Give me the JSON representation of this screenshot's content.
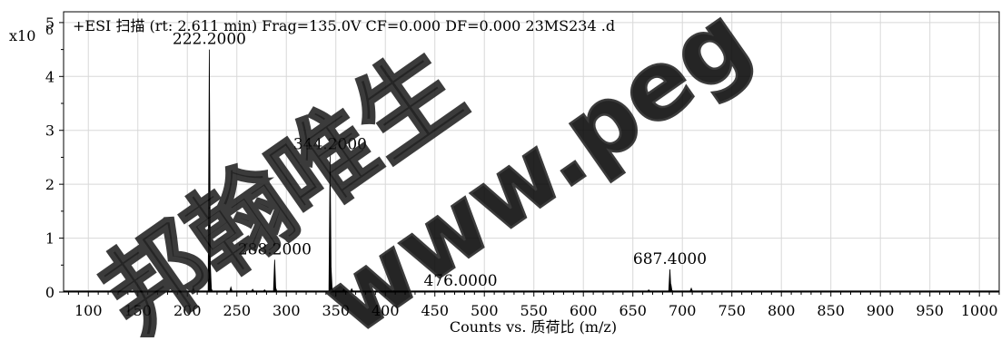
{
  "chart_data": {
    "type": "line",
    "title": "+ESI 扫描 (rt: 2.611 min) Frag=135.0V CF=0.000 DF=0.000 23MS234 .d",
    "y_scale_label": "x10",
    "y_scale_exponent": "6",
    "xlabel": "Counts vs. 质荷比 (m/z)",
    "ylabel": "",
    "xlim": [
      75,
      1020
    ],
    "ylim": [
      0,
      5.2
    ],
    "x_ticks": [
      100,
      150,
      200,
      250,
      300,
      350,
      400,
      450,
      500,
      550,
      600,
      650,
      700,
      750,
      800,
      850,
      900,
      950,
      1000
    ],
    "y_ticks": [
      0,
      1,
      2,
      3,
      4,
      5
    ],
    "grid": true,
    "series": [
      {
        "color": "#000000",
        "peaks": [
          {
            "mz": 185.0,
            "intensity": 0.03
          },
          {
            "mz": 206.0,
            "intensity": 0.08
          },
          {
            "mz": 222.2,
            "intensity": 4.5
          },
          {
            "mz": 223.2,
            "intensity": 0.52
          },
          {
            "mz": 224.2,
            "intensity": 0.06
          },
          {
            "mz": 244.0,
            "intensity": 0.09
          },
          {
            "mz": 266.0,
            "intensity": 0.05
          },
          {
            "mz": 278.0,
            "intensity": 0.04
          },
          {
            "mz": 288.2,
            "intensity": 0.6
          },
          {
            "mz": 289.2,
            "intensity": 0.08
          },
          {
            "mz": 344.2,
            "intensity": 2.55
          },
          {
            "mz": 345.2,
            "intensity": 0.45
          },
          {
            "mz": 346.2,
            "intensity": 0.06
          },
          {
            "mz": 358.0,
            "intensity": 0.05
          },
          {
            "mz": 366.0,
            "intensity": 0.06
          },
          {
            "mz": 476.0,
            "intensity": 0.02
          },
          {
            "mz": 666.0,
            "intensity": 0.04
          },
          {
            "mz": 687.4,
            "intensity": 0.42
          },
          {
            "mz": 688.4,
            "intensity": 0.15
          },
          {
            "mz": 689.4,
            "intensity": 0.03
          },
          {
            "mz": 709.0,
            "intensity": 0.07
          }
        ]
      }
    ],
    "annotations": [
      {
        "text": "222.2000",
        "mz": 222.2,
        "intensity": 4.5
      },
      {
        "text": "344.2000",
        "mz": 344.2,
        "intensity": 2.55
      },
      {
        "text": "288.2000",
        "mz": 288.2,
        "intensity": 0.6
      },
      {
        "text": "476.0000",
        "mz": 476.0,
        "intensity": 0.02
      },
      {
        "text": "687.4000",
        "mz": 687.4,
        "intensity": 0.42
      }
    ]
  },
  "watermarks": [
    "邦翰唯生",
    "www.peg"
  ]
}
